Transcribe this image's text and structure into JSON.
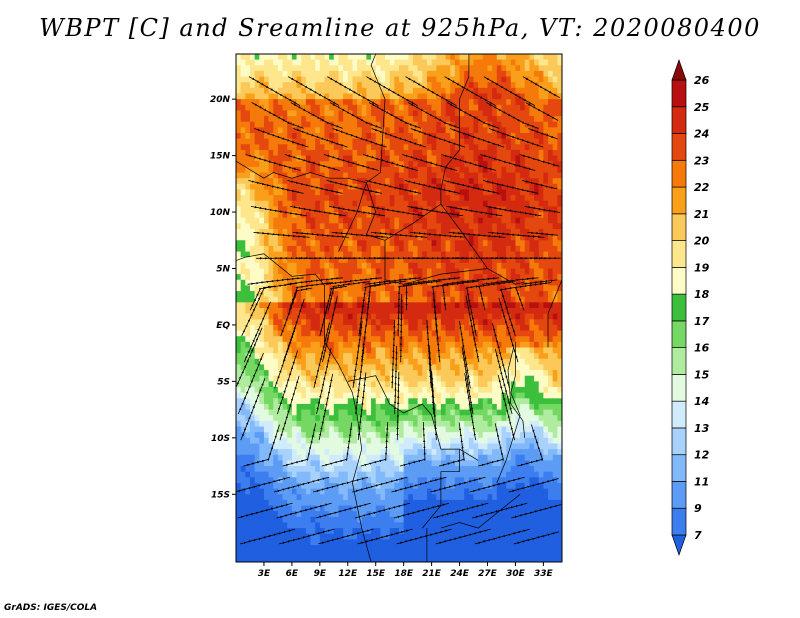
{
  "title": "WBPT [C] and Sreamline at 925hPa, VT: 2020080400",
  "credit": "GrADS: IGES/COLA",
  "chart_data": {
    "type": "heatmap",
    "variable": "WBPT",
    "units": "C",
    "level": "925hPa",
    "valid_time": "2020080400",
    "overlay": "streamline",
    "xlim": [
      0,
      35
    ],
    "ylim": [
      -21,
      24
    ],
    "x_ticks": [
      3,
      6,
      9,
      12,
      15,
      18,
      21,
      24,
      27,
      30,
      33
    ],
    "x_tick_labels": [
      "3E",
      "6E",
      "9E",
      "12E",
      "15E",
      "18E",
      "21E",
      "24E",
      "27E",
      "30E",
      "33E"
    ],
    "y_ticks": [
      20,
      15,
      10,
      5,
      0,
      -5,
      -10,
      -15
    ],
    "y_tick_labels": [
      "20N",
      "15N",
      "10N",
      "5N",
      "EQ",
      "5S",
      "10S",
      "15S"
    ],
    "colorbar": {
      "levels": [
        "7",
        "9",
        "11",
        "12",
        "13",
        "14",
        "15",
        "16",
        "17",
        "18",
        "19",
        "20",
        "21",
        "22",
        "23",
        "24",
        "25",
        "26"
      ],
      "colors": [
        "#1f5fe0",
        "#3c7ef0",
        "#5c9cf5",
        "#82b9fa",
        "#a8d2fc",
        "#d0ebfc",
        "#e2fbe0",
        "#b0eca0",
        "#74d862",
        "#3cbf3c",
        "#fdfcc6",
        "#fde68c",
        "#fbc95a",
        "#fa9f1a",
        "#f57a0a",
        "#e5480e",
        "#d42a10",
        "#b81010",
        "#8c0808"
      ]
    }
  }
}
